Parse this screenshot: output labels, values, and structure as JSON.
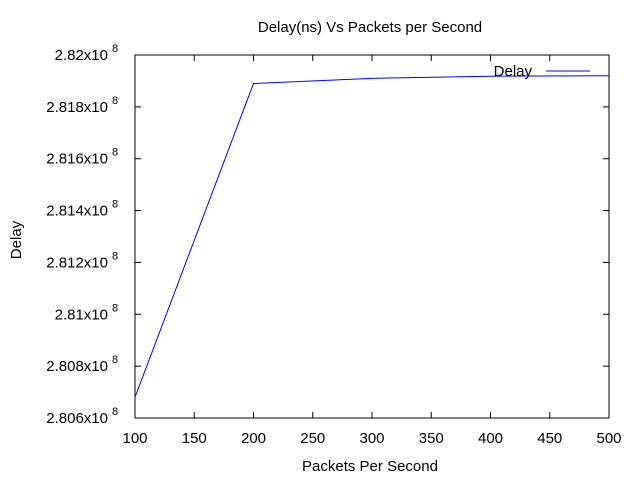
{
  "chart_data": {
    "type": "line",
    "title": "Delay(ns) Vs Packets per Second",
    "xlabel": "Packets Per Second",
    "ylabel": "Delay",
    "xlim": [
      100,
      500
    ],
    "ylim": [
      280600000,
      282000000
    ],
    "x_ticks": [
      100,
      150,
      200,
      250,
      300,
      350,
      400,
      450,
      500
    ],
    "x_tick_labels": [
      "100",
      "150",
      "200",
      "250",
      "300",
      "350",
      "400",
      "450",
      "500"
    ],
    "y_ticks": [
      280600000,
      280800000,
      281000000,
      281200000,
      281400000,
      281600000,
      281800000,
      282000000
    ],
    "y_tick_labels": [
      {
        "mantissa": "2.806x10",
        "exp": "8"
      },
      {
        "mantissa": "2.808x10",
        "exp": "8"
      },
      {
        "mantissa": "2.81x10",
        "exp": "8"
      },
      {
        "mantissa": "2.812x10",
        "exp": "8"
      },
      {
        "mantissa": "2.814x10",
        "exp": "8"
      },
      {
        "mantissa": "2.816x10",
        "exp": "8"
      },
      {
        "mantissa": "2.818x10",
        "exp": "8"
      },
      {
        "mantissa": "2.82x10",
        "exp": "8"
      }
    ],
    "grid": false,
    "legend_position": "top-right",
    "series": [
      {
        "name": "Delay",
        "color": "#0000ff",
        "x": [
          100,
          200,
          300,
          400,
          500
        ],
        "y": [
          280680000,
          281890000,
          281910000,
          281918000,
          281920000
        ]
      }
    ]
  }
}
